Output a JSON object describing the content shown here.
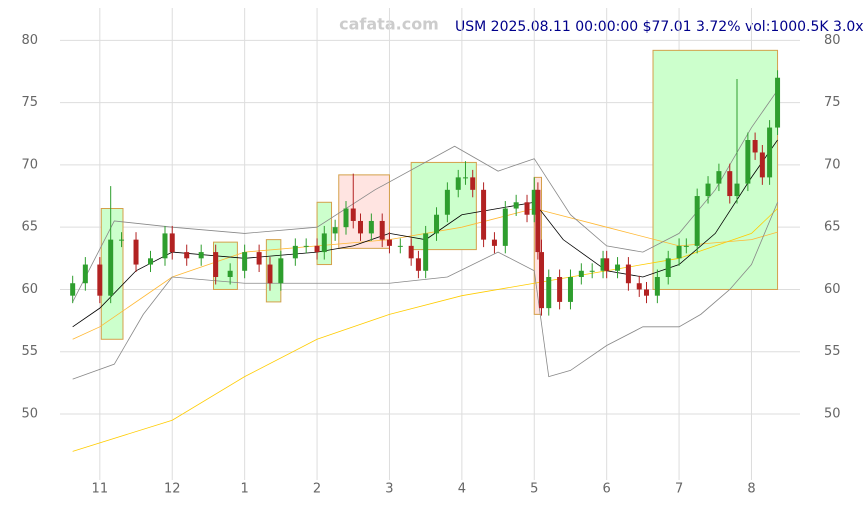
{
  "chart_data": {
    "type": "candlestick",
    "title": "USM 2025.08.11 00:00:00 $77.01 3.72% vol:1000.5K 3.0x",
    "watermark": "cafata.com",
    "up_color": "#2e9e2e",
    "down_color": "#b22222",
    "grid": true,
    "xlim": [
      -0.55,
      9.67
    ],
    "ylim": [
      44.7,
      82.6
    ],
    "xticks": [
      {
        "value": 0,
        "label": "11"
      },
      {
        "value": 1,
        "label": "12"
      },
      {
        "value": 2,
        "label": "1"
      },
      {
        "value": 3,
        "label": "2"
      },
      {
        "value": 4,
        "label": "3"
      },
      {
        "value": 5,
        "label": "4"
      },
      {
        "value": 6,
        "label": "5"
      },
      {
        "value": 7,
        "label": "6"
      },
      {
        "value": 8,
        "label": "7"
      },
      {
        "value": 9,
        "label": "8"
      }
    ],
    "yticks": [
      50,
      55,
      60,
      65,
      70,
      75,
      80
    ],
    "x": [
      -0.375,
      -0.2,
      0,
      0.15,
      0.3,
      0.5,
      0.7,
      0.9,
      1.0,
      1.2,
      1.4,
      1.6,
      1.8,
      2.0,
      2.2,
      2.35,
      2.5,
      2.7,
      2.85,
      3.0,
      3.1,
      3.25,
      3.4,
      3.5,
      3.6,
      3.75,
      3.9,
      4.0,
      4.15,
      4.3,
      4.4,
      4.5,
      4.65,
      4.8,
      4.95,
      5.05,
      5.15,
      5.3,
      5.45,
      5.6,
      5.75,
      5.9,
      6.0,
      6.05,
      6.1,
      6.2,
      6.35,
      6.5,
      6.65,
      6.8,
      6.95,
      7.0,
      7.15,
      7.3,
      7.45,
      7.55,
      7.7,
      7.85,
      8.0,
      8.1,
      8.25,
      8.4,
      8.55,
      8.7,
      8.8,
      8.95,
      9.05,
      9.15,
      9.25,
      9.36
    ],
    "open": [
      59.5,
      60.5,
      62,
      59.5,
      64,
      64,
      62,
      62.5,
      64.5,
      63,
      62.5,
      63,
      61,
      61.5,
      63,
      62,
      60.5,
      62.5,
      63.5,
      63.5,
      63,
      64.5,
      65,
      66.5,
      65.5,
      64.5,
      65.5,
      64,
      63.5,
      63.5,
      62.5,
      61.5,
      64.5,
      66,
      68,
      69,
      69,
      68,
      64,
      63.5,
      66.5,
      67,
      66,
      68,
      63,
      58.5,
      61,
      59,
      61,
      61.5,
      61.5,
      62.5,
      61.5,
      62,
      60.5,
      60,
      59.5,
      61,
      62.5,
      63.5,
      63.5,
      67.5,
      68.5,
      69.5,
      67.5,
      68.5,
      72,
      71,
      69,
      73
    ],
    "high": [
      61.1,
      62.6,
      62.6,
      68.3,
      64.6,
      64.6,
      63.1,
      65.1,
      65.1,
      63.6,
      63.6,
      63.6,
      62.1,
      63.6,
      63.6,
      62.6,
      63.1,
      64.1,
      64.1,
      64.1,
      65.1,
      65.6,
      67.1,
      69.3,
      66.1,
      66.1,
      66.1,
      64.6,
      64.1,
      64.1,
      63.1,
      65.1,
      66.6,
      68.6,
      69.6,
      70.3,
      69.6,
      68.6,
      64.6,
      67.1,
      67.6,
      67.6,
      69,
      68.6,
      64,
      61.6,
      61.6,
      61.6,
      62.1,
      62.1,
      63.1,
      63.1,
      62.6,
      62.6,
      61.1,
      60.6,
      61.6,
      63.1,
      64.1,
      64.1,
      68.1,
      69.1,
      70.1,
      70.1,
      76.9,
      72.6,
      72.6,
      71.6,
      73.6,
      77.6
    ],
    "low": [
      58.9,
      59.9,
      58.9,
      58.9,
      63.4,
      61.4,
      61.4,
      61.9,
      62.4,
      61.9,
      61.9,
      60.4,
      60.4,
      60.9,
      61.4,
      59.9,
      59.9,
      61.9,
      62.9,
      62.4,
      62.4,
      63.9,
      64.4,
      64.9,
      63.9,
      63.9,
      63.4,
      62.9,
      62.9,
      61.9,
      60.9,
      60.9,
      63.9,
      65.4,
      67.4,
      68.4,
      67.4,
      63.4,
      62.9,
      62.9,
      65.9,
      65.4,
      65.4,
      62.4,
      57.9,
      57.9,
      58.4,
      58.4,
      60.4,
      60.9,
      60.9,
      60.9,
      60.9,
      59.9,
      59.4,
      58.9,
      58.9,
      60.4,
      61.9,
      62.9,
      62.9,
      66.9,
      67.9,
      66.9,
      66.9,
      67.9,
      70.4,
      68.4,
      68.4,
      72.4
    ],
    "close": [
      60.5,
      62,
      59.5,
      64,
      64,
      62,
      62.5,
      64.5,
      63,
      62.5,
      63,
      61,
      61.5,
      63,
      62,
      60.5,
      62.5,
      63.5,
      63.5,
      63,
      64.5,
      65,
      66.5,
      65.5,
      64.5,
      65.5,
      64,
      63.5,
      63.5,
      62.5,
      61.5,
      64.5,
      66,
      68,
      69,
      69,
      68,
      64,
      63.5,
      66.5,
      67,
      66,
      68,
      63,
      58.5,
      61,
      59,
      61,
      61.5,
      61.5,
      62.5,
      61.5,
      62,
      60.5,
      60,
      59.5,
      61,
      62.5,
      63.5,
      63.5,
      67.5,
      68.5,
      69.5,
      67.5,
      68.5,
      72,
      71,
      69,
      73,
      77
    ],
    "zones": [
      {
        "color": "#ccffcc",
        "x0": 0.02,
        "x1": 0.32,
        "y0": 56,
        "y1": 66.5
      },
      {
        "color": "#ccffcc",
        "x0": 1.57,
        "x1": 1.9,
        "y0": 60,
        "y1": 63.8
      },
      {
        "color": "#ccffcc",
        "x0": 2.3,
        "x1": 2.5,
        "y0": 59,
        "y1": 64
      },
      {
        "color": "#ccffcc",
        "x0": 3.0,
        "x1": 3.2,
        "y0": 62,
        "y1": 67
      },
      {
        "color": "#ffe4e1",
        "x0": 3.3,
        "x1": 4.0,
        "y0": 63.3,
        "y1": 69.2
      },
      {
        "color": "#ccffcc",
        "x0": 4.3,
        "x1": 5.2,
        "y0": 63.2,
        "y1": 70.2
      },
      {
        "color": "#ffe4e1",
        "x0": 6.0,
        "x1": 6.1,
        "y0": 58,
        "y1": 69
      },
      {
        "color": "#ccffcc",
        "x0": 7.64,
        "x1": 9.36,
        "y0": 60,
        "y1": 79.2
      }
    ],
    "lines": [
      {
        "color": "#ffcc00",
        "x": [
          -0.375,
          1,
          2,
          3,
          4,
          5,
          6,
          7,
          8,
          9,
          9.36
        ],
        "values": [
          47,
          49.5,
          53,
          56,
          58,
          59.5,
          60.5,
          61.5,
          62.5,
          64.5,
          66.5
        ]
      },
      {
        "color": "#ffb833",
        "x": [
          -0.375,
          0,
          1,
          2,
          3,
          4,
          5,
          6,
          7,
          8,
          9,
          9.36
        ],
        "values": [
          56,
          57,
          61,
          63,
          63.5,
          64,
          65,
          66.5,
          65,
          63.5,
          64,
          64.6
        ]
      },
      {
        "color": "#000000",
        "x": [
          -0.375,
          0,
          0.5,
          1,
          2,
          3,
          3.5,
          4,
          4.5,
          5,
          5.5,
          6,
          6.4,
          7,
          7.5,
          8,
          8.5,
          9,
          9.36
        ],
        "values": [
          57,
          58.5,
          61.5,
          63,
          62.5,
          63,
          63.5,
          64.5,
          64,
          66,
          66.5,
          67,
          64,
          61.5,
          61,
          62,
          64.5,
          69,
          72
        ]
      },
      {
        "color": "#888888",
        "x": [
          -0.375,
          0.2,
          1,
          2,
          3,
          3.8,
          4.9,
          5.5,
          6,
          6.5,
          7,
          7.5,
          8,
          8.5,
          9,
          9.36
        ],
        "values": [
          59,
          65.5,
          65,
          64.5,
          65,
          68,
          71.5,
          69.5,
          70.5,
          66,
          63.5,
          63,
          64.5,
          68,
          73,
          76
        ]
      },
      {
        "color": "#888888",
        "x": [
          -0.375,
          0.2,
          0.6,
          1,
          2,
          3,
          4,
          4.8,
          5.5,
          6,
          6.2,
          6.5,
          7,
          7.5,
          8,
          8.3,
          8.7,
          9,
          9.36
        ],
        "values": [
          52.8,
          54,
          58,
          61,
          60.5,
          60.5,
          60.5,
          61,
          63,
          61.5,
          53,
          53.5,
          55.5,
          57,
          57,
          58,
          60,
          62,
          67
        ]
      }
    ]
  }
}
